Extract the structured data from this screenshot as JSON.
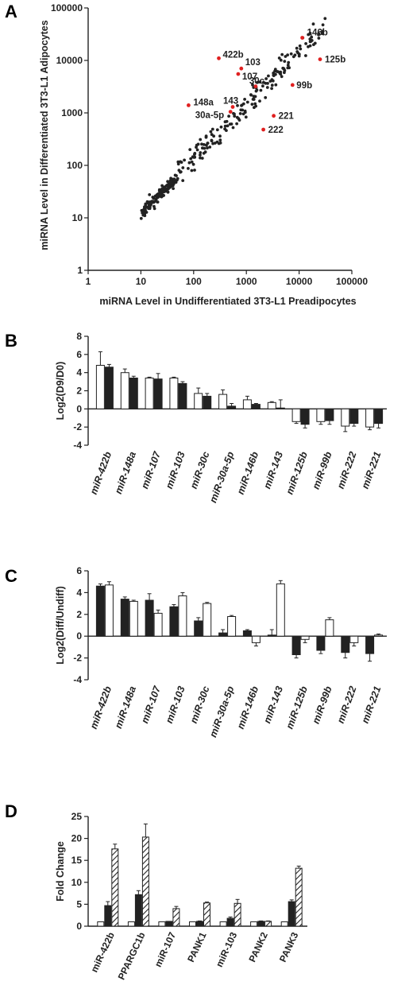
{
  "panels": {
    "A": "A",
    "B": "B",
    "C": "C",
    "D": "D"
  },
  "chart_data": [
    {
      "panel": "A",
      "type": "scatter",
      "xscale": "log",
      "yscale": "log",
      "xlim": [
        1,
        100000
      ],
      "ylim": [
        1,
        100000
      ],
      "xticks": [
        "1",
        "10",
        "100",
        "1000",
        "10000",
        "100000"
      ],
      "yticks": [
        "1",
        "10",
        "100",
        "1000",
        "10000",
        "100000"
      ],
      "xlabel": "miRNA Level in Undifferentiated 3T3-L1 Preadipocytes",
      "ylabel": "miRNA Level in Differentiated 3T3-L1 Adipocytes",
      "point_color": "#222222",
      "highlight_color": "#e02020",
      "labeled_points": [
        {
          "label": "146b",
          "x": 11500,
          "y": 27000
        },
        {
          "label": "422b",
          "x": 300,
          "y": 11000
        },
        {
          "label": "125b",
          "x": 25000,
          "y": 10500
        },
        {
          "label": "103",
          "x": 800,
          "y": 7000
        },
        {
          "label": "107",
          "x": 700,
          "y": 5500
        },
        {
          "label": "30c",
          "x": 1500,
          "y": 3200
        },
        {
          "label": "99b",
          "x": 7500,
          "y": 3400
        },
        {
          "label": "148a",
          "x": 80,
          "y": 1400
        },
        {
          "label": "143",
          "x": 550,
          "y": 1300
        },
        {
          "label": "30a-5p",
          "x": 500,
          "y": 1050
        },
        {
          "label": "221",
          "x": 3300,
          "y": 880
        },
        {
          "label": "222",
          "x": 2100,
          "y": 480
        }
      ]
    },
    {
      "panel": "B",
      "type": "bar",
      "ylabel": "Log2(D9/D0)",
      "ylim": [
        -4,
        8
      ],
      "yticks": [
        "-4",
        "-2",
        "0",
        "2",
        "4",
        "6",
        "8"
      ],
      "categories": [
        "miR-422b",
        "miR-148a",
        "miR-107",
        "miR-103",
        "miR-30c",
        "miR-30a-5p",
        "miR-146b",
        "miR-143",
        "miR-125b",
        "miR-99b",
        "miR-222",
        "miR-221"
      ],
      "series": [
        {
          "fill": "#ffffff",
          "values": [
            4.8,
            4.0,
            3.4,
            3.4,
            1.7,
            1.6,
            1.0,
            0.7,
            -1.4,
            -1.4,
            -1.9,
            -2.0
          ],
          "errors": [
            1.5,
            0.4,
            0.1,
            0.1,
            0.6,
            0.5,
            0.4,
            0.1,
            0.2,
            0.3,
            0.6,
            0.3
          ]
        },
        {
          "fill": "#222222",
          "values": [
            4.6,
            3.4,
            3.3,
            2.8,
            1.4,
            0.3,
            0.5,
            0.1,
            -1.7,
            -1.3,
            -1.6,
            -1.6
          ],
          "errors": [
            0.3,
            0.2,
            0.6,
            0.2,
            0.3,
            0.3,
            0.1,
            0.9,
            0.4,
            0.4,
            0.3,
            0.5
          ]
        }
      ]
    },
    {
      "panel": "C",
      "type": "bar",
      "ylabel": "Log2(Diff/Undiff)",
      "ylim": [
        -4,
        6
      ],
      "yticks": [
        "-4",
        "-2",
        "0",
        "2",
        "4",
        "6"
      ],
      "categories": [
        "miR-422b",
        "miR-148a",
        "miR-107",
        "miR-103",
        "miR-30c",
        "miR-30a-5p",
        "miR-146b",
        "miR-143",
        "miR-125b",
        "miR-99b",
        "miR-222",
        "miR-221"
      ],
      "series": [
        {
          "fill": "#222222",
          "values": [
            4.6,
            3.4,
            3.3,
            2.7,
            1.4,
            0.3,
            0.5,
            0.1,
            -1.7,
            -1.3,
            -1.5,
            -1.6
          ],
          "errors": [
            0.2,
            0.2,
            0.6,
            0.2,
            0.3,
            0.3,
            0.1,
            0.5,
            0.3,
            0.3,
            0.5,
            0.7
          ]
        },
        {
          "fill": "#ffffff",
          "values": [
            4.7,
            3.2,
            2.1,
            3.7,
            3.0,
            1.8,
            -0.6,
            4.8,
            -0.3,
            1.5,
            -0.6,
            0.1
          ],
          "errors": [
            0.3,
            0.1,
            0.3,
            0.3,
            0.1,
            0.1,
            0.3,
            0.3,
            0.3,
            0.2,
            0.3,
            0.1
          ]
        }
      ]
    },
    {
      "panel": "D",
      "type": "bar",
      "ylabel": "Fold Change",
      "ylim": [
        0,
        25
      ],
      "yticks": [
        "0",
        "5",
        "10",
        "15",
        "20",
        "25"
      ],
      "categories": [
        "miR-422b",
        "PPARGC1b",
        "miR-107",
        "PANK1",
        "miR-103",
        "PANK2",
        "PANK3"
      ],
      "series": [
        {
          "fill": "#ffffff",
          "values": [
            1,
            1,
            1,
            1,
            1,
            1,
            1
          ],
          "errors": [
            0,
            0,
            0,
            0,
            0,
            0,
            0
          ]
        },
        {
          "fill": "#222222",
          "values": [
            4.7,
            7.2,
            1.1,
            1.1,
            1.8,
            1.1,
            5.6
          ],
          "errors": [
            0.9,
            0.9,
            0,
            0.1,
            0.3,
            0.1,
            0.4
          ]
        },
        {
          "fill": "hatch",
          "values": [
            17.6,
            20.3,
            4.0,
            5.3,
            5.2,
            1.1,
            13.2
          ],
          "errors": [
            1.1,
            3.0,
            0.5,
            0.2,
            0.9,
            0.1,
            0.5
          ]
        }
      ]
    }
  ]
}
